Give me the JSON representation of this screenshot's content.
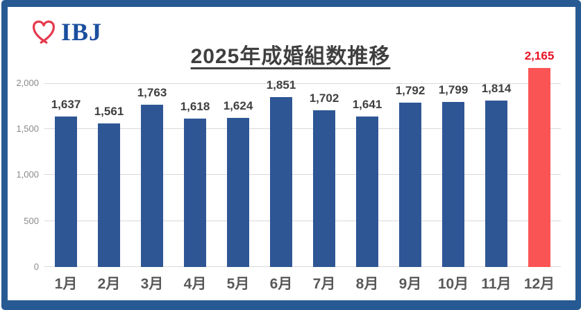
{
  "logo": {
    "text": "IBJ",
    "heart_icon": "ribbon-heart-icon",
    "text_color": "#1b4f9e",
    "heart_color": "#e63a4f"
  },
  "title": {
    "text": "2025年成婚組数推移",
    "color": "#3f3f3f"
  },
  "frame": {
    "border_color": "#275a93"
  },
  "chart_data": {
    "type": "bar",
    "title": "2025年成婚組数推移",
    "categories": [
      "1月",
      "2月",
      "3月",
      "4月",
      "5月",
      "6月",
      "7月",
      "8月",
      "9月",
      "10月",
      "11月",
      "12月"
    ],
    "values": [
      1637,
      1561,
      1763,
      1618,
      1624,
      1851,
      1702,
      1641,
      1792,
      1799,
      1814,
      2165
    ],
    "value_labels": [
      "1,637",
      "1,561",
      "1,763",
      "1,618",
      "1,624",
      "1,851",
      "1,702",
      "1,641",
      "1,792",
      "1,799",
      "1,814",
      "2,165"
    ],
    "xlabel": "",
    "ylabel": "",
    "ylim": [
      0,
      2000
    ],
    "yticks": [
      0,
      500,
      1000,
      1500,
      2000
    ],
    "ytick_labels": [
      "0",
      "500",
      "1,000",
      "1,500",
      "2,000"
    ],
    "grid": true,
    "legend": false,
    "bar_color": "#2e5695",
    "highlight_index": 11,
    "highlight_bar_color": "#fb5454",
    "value_label_color": "#3f3f3f",
    "highlight_value_label_color": "#e81123",
    "xtick_label_color": "#595959",
    "ytick_label_color": "#8a8a8a",
    "gridline_color": "#d9d9d9"
  }
}
